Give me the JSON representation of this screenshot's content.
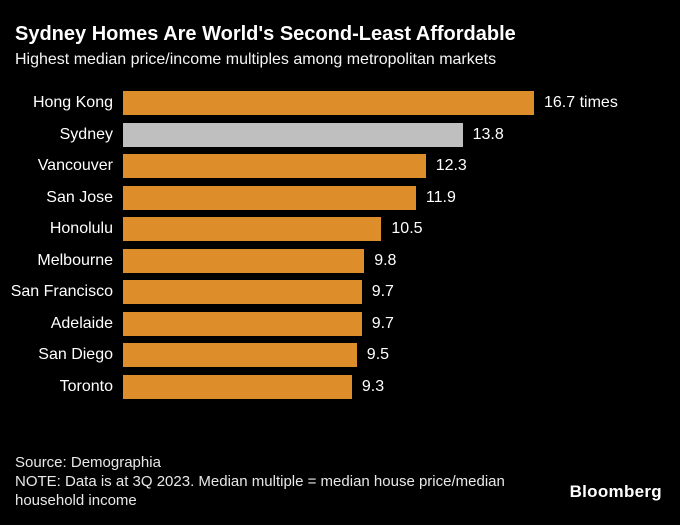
{
  "header": {
    "title": "Sydney Homes Are World's Second-Least Affordable",
    "subtitle": "Highest median price/income multiples among metropolitan markets"
  },
  "chart_data": {
    "type": "bar",
    "orientation": "horizontal",
    "title": "Sydney Homes Are World's Second-Least Affordable",
    "subtitle": "Highest median price/income multiples among metropolitan markets",
    "categories": [
      "Hong Kong",
      "Sydney",
      "Vancouver",
      "San Jose",
      "Honolulu",
      "Melbourne",
      "San Francisco",
      "Adelaide",
      "San Diego",
      "Toronto"
    ],
    "values": [
      16.7,
      13.8,
      12.3,
      11.9,
      10.5,
      9.8,
      9.7,
      9.7,
      9.5,
      9.3
    ],
    "value_labels": [
      "16.7 times",
      "13.8",
      "12.3",
      "11.9",
      "10.5",
      "9.8",
      "9.7",
      "9.7",
      "9.5",
      "9.3"
    ],
    "unit_suffix_first_bar": "times",
    "highlight_category": "Sydney",
    "bar_color": "#DD8D29",
    "highlight_color": "#BFBFBF",
    "background_color": "#000000",
    "text_color": "#FFFFFF",
    "xlim": [
      0,
      16.7
    ],
    "grid": false,
    "legend": false,
    "axis_visible": false
  },
  "footer": {
    "source": "Source: Demographia",
    "note": "NOTE: Data is at 3Q 2023. Median multiple = median house price/median household income",
    "logo": "Bloomberg"
  }
}
